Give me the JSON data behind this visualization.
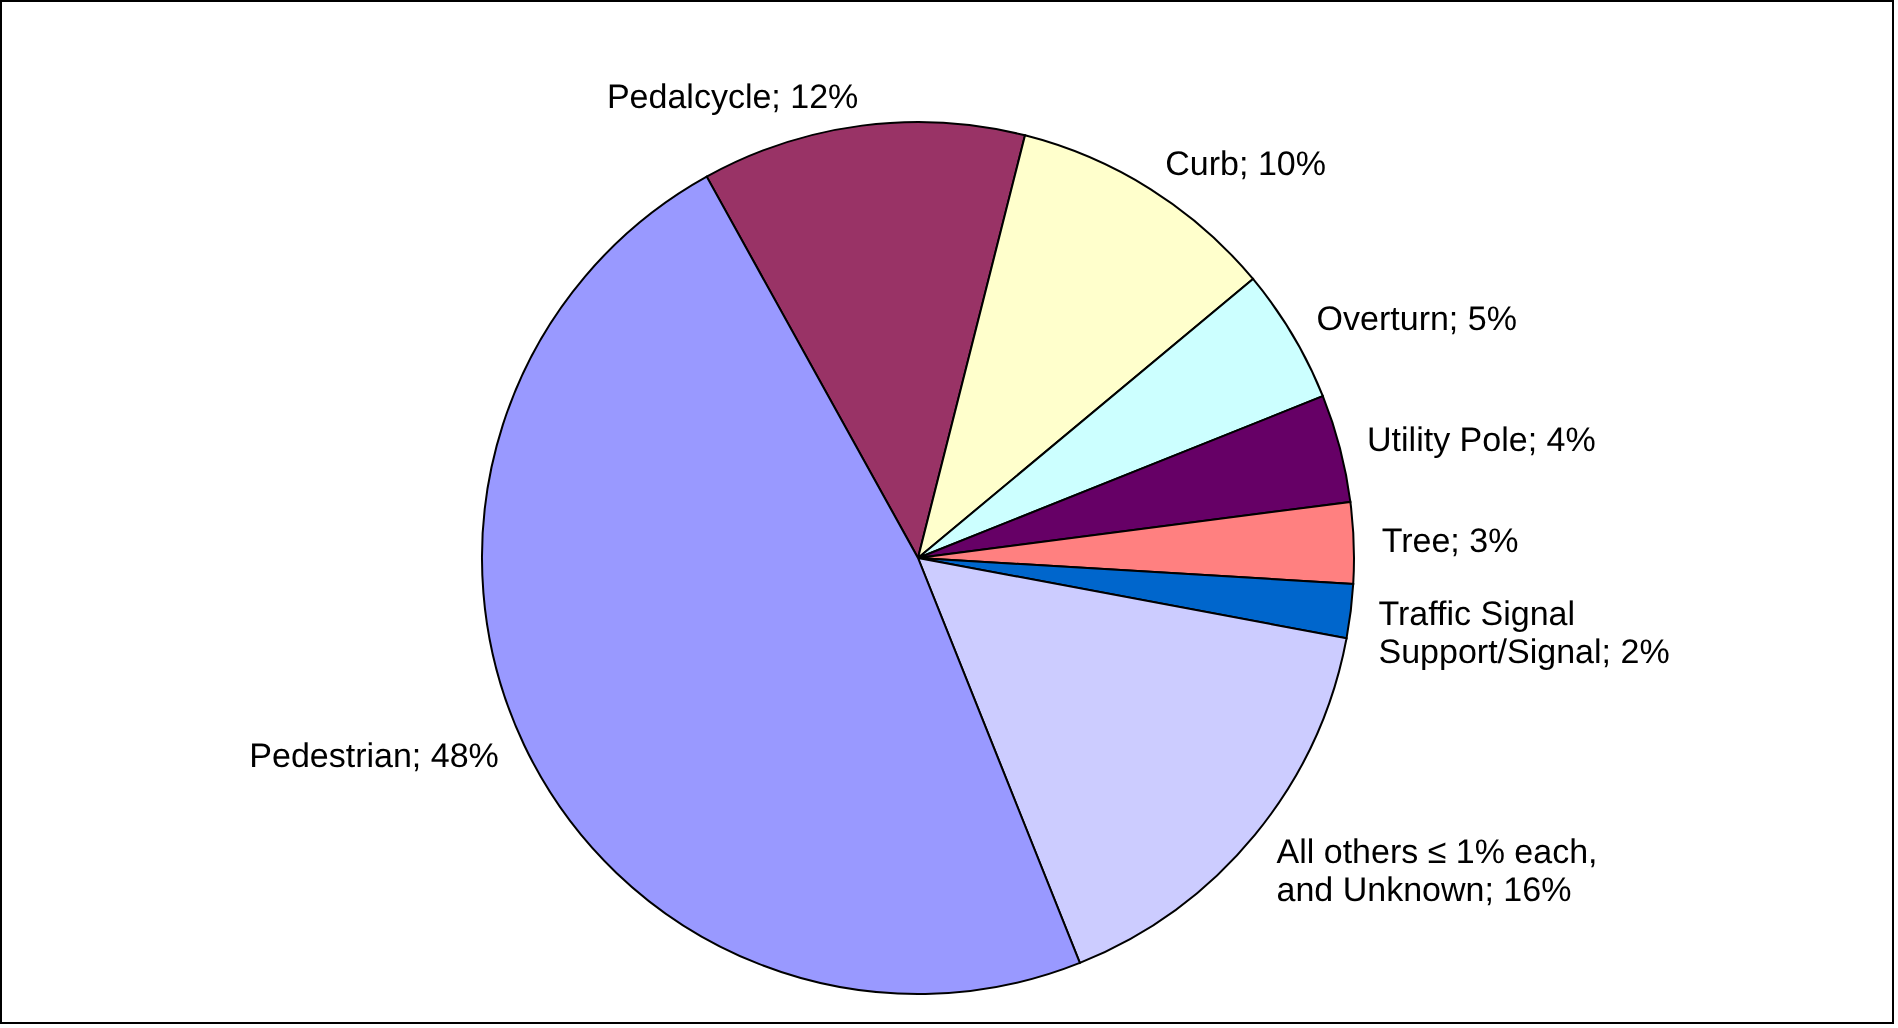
{
  "chart_data": {
    "type": "pie",
    "categories": [
      "Pedalcycle",
      "Curb",
      "Overturn",
      "Utility Pole",
      "Tree",
      "Traffic Signal Support/Signal",
      "All others ≤ 1% each, and Unknown",
      "Pedestrian"
    ],
    "values": [
      12,
      10,
      5,
      4,
      3,
      2,
      16,
      48
    ],
    "value_labels": [
      "12%",
      "10%",
      "5%",
      "4%",
      "3%",
      "2%",
      "16%",
      "48%"
    ],
    "colors": [
      "#993366",
      "#ffffcc",
      "#ccffff",
      "#660066",
      "#ff8080",
      "#0066cc",
      "#ccccff",
      "#9999ff"
    ]
  }
}
